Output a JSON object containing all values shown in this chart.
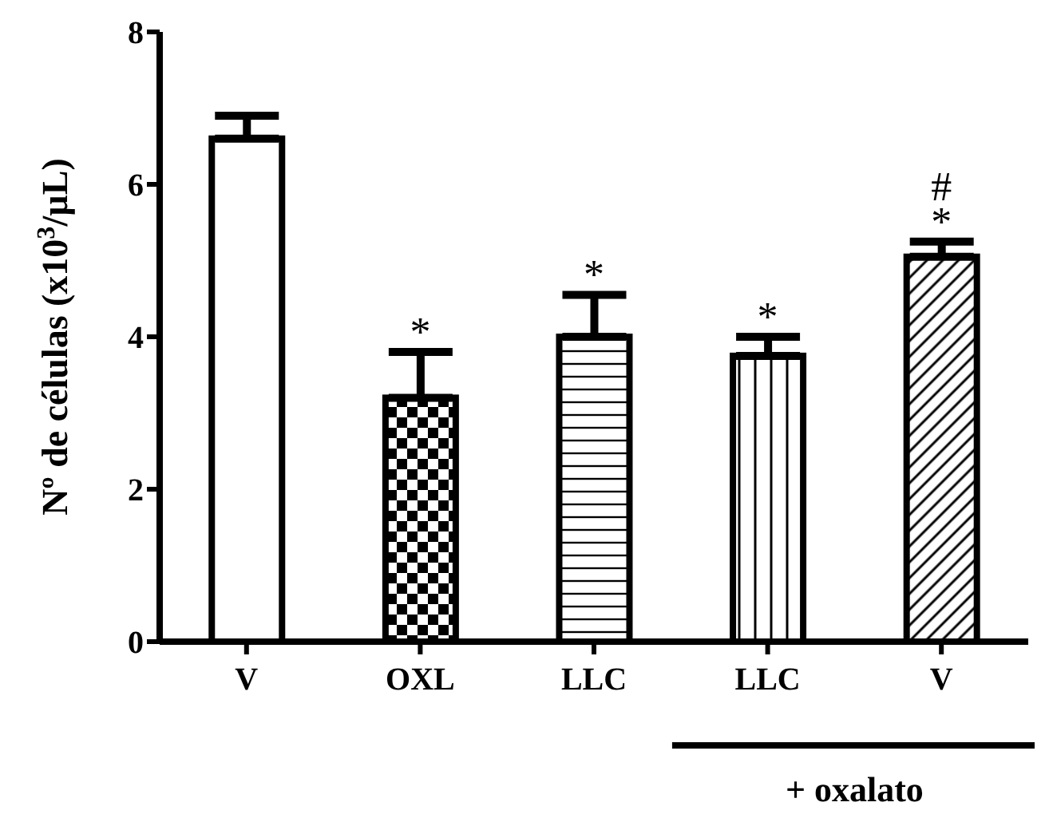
{
  "chart_data": {
    "type": "bar",
    "ylabel": "Nº de células (x10$^{3}$/µL)",
    "categories": [
      "V",
      "OXL",
      "LLC",
      "LLC",
      "V"
    ],
    "values": [
      6.6,
      3.2,
      4.0,
      3.75,
      5.05
    ],
    "errors": [
      0.3,
      0.6,
      0.55,
      0.25,
      0.2
    ],
    "value_labels": [
      null,
      "*",
      "*",
      "*",
      "#\n*"
    ],
    "colors": [
      "#ffffff",
      "#000000",
      "#000000",
      "#000000",
      "#000000"
    ],
    "ylim": [
      0,
      8
    ],
    "yticks": [
      0,
      2,
      4,
      6,
      8
    ],
    "annotations": [
      "+ oxalato"
    ]
  }
}
